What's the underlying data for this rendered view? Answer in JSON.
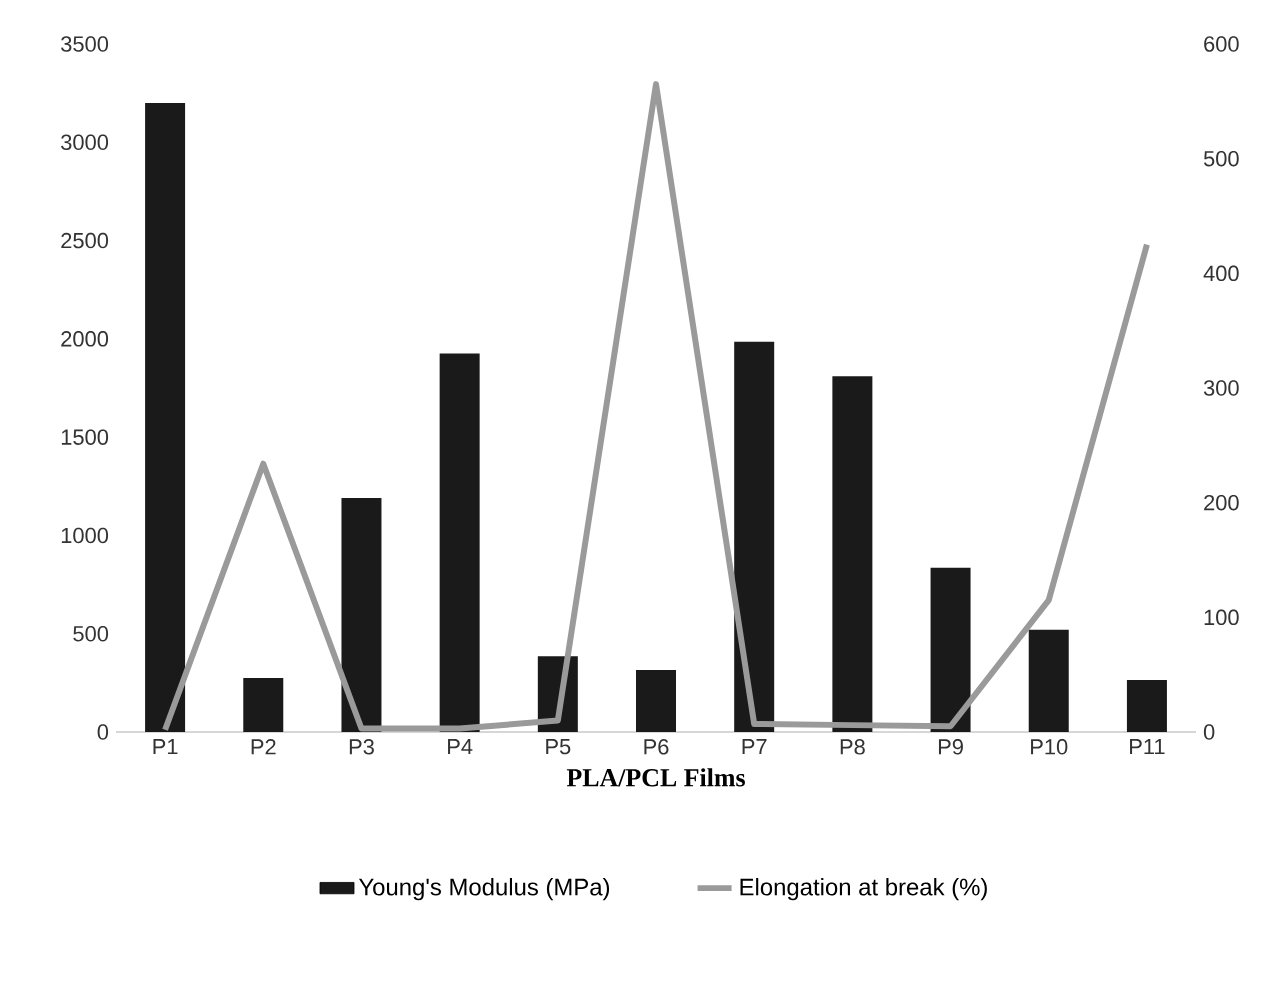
{
  "chart_data": {
    "type": "bar",
    "xlabel": "PLA/PCL Films",
    "categories": [
      "P1",
      "P2",
      "P3",
      "P4",
      "P5",
      "P6",
      "P7",
      "P8",
      "P9",
      "P10",
      "P11"
    ],
    "series": [
      {
        "name": "Young's Modulus (MPa)",
        "color": "#1a1a1a",
        "values": [
          3200,
          275,
          1190,
          1925,
          385,
          315,
          1985,
          1810,
          835,
          520,
          265
        ]
      },
      {
        "name": "Elongation at break (%)",
        "color": "#9a9a9a",
        "type": "line",
        "axis": "y2",
        "values": [
          2,
          234,
          3,
          3,
          10,
          565,
          7,
          6,
          5,
          115,
          425
        ]
      }
    ],
    "ylim": [
      0,
      3500
    ],
    "yticks": [
      0,
      500,
      1000,
      1500,
      2000,
      2500,
      3000,
      3500
    ],
    "y2lim": [
      0,
      600
    ],
    "y2ticks": [
      0,
      100,
      200,
      300,
      400,
      500,
      600
    ],
    "legend": "bottom"
  }
}
